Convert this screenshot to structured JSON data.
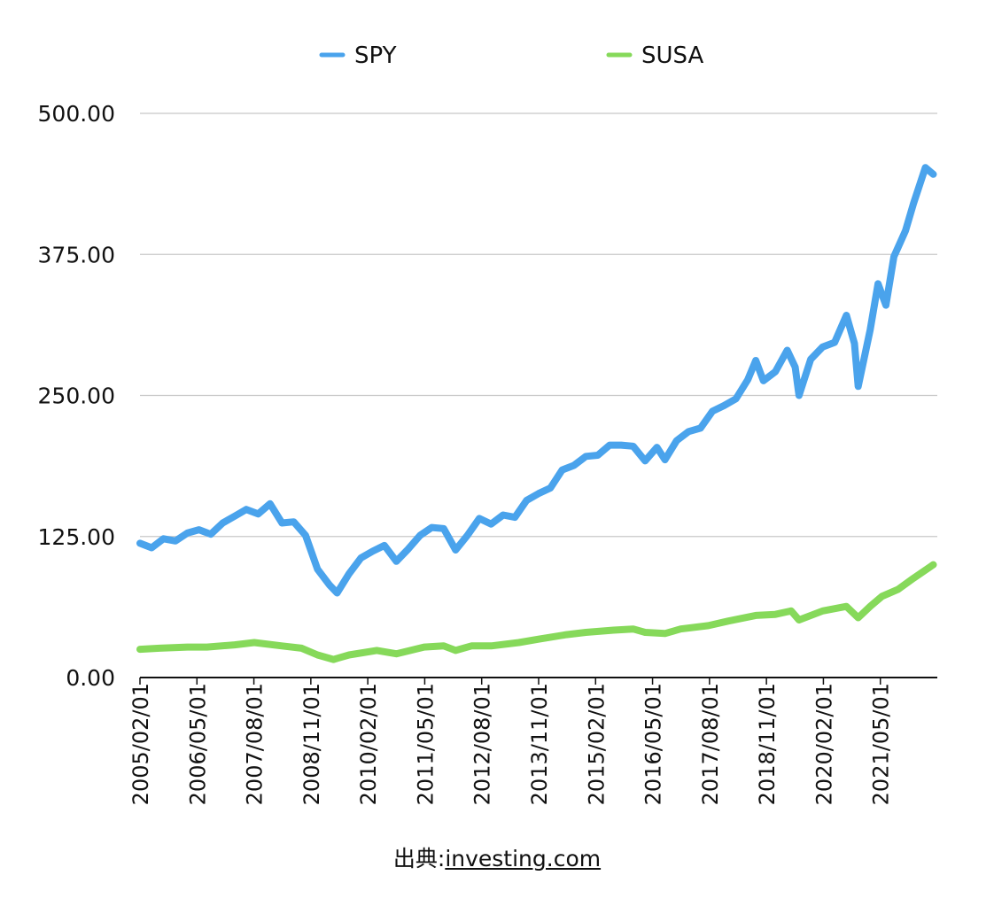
{
  "chart_data": {
    "type": "line",
    "x_tick_labels": [
      "2005/02/01",
      "2006/05/01",
      "2007/08/01",
      "2008/11/01",
      "2010/02/01",
      "2011/05/01",
      "2012/08/01",
      "2013/11/01",
      "2015/02/01",
      "2016/05/01",
      "2017/08/01",
      "2018/11/01",
      "2020/02/01",
      "2021/05/01"
    ],
    "y_tick_labels": [
      "0.00",
      "125.00",
      "250.00",
      "375.00",
      "500.00"
    ],
    "ylim": [
      0,
      500
    ],
    "xlim": [
      "2005-01-01",
      "2021-11-01"
    ],
    "grid": "horizontal",
    "legend_position": "top",
    "colors": {
      "SPY": "#4aa3ec",
      "SUSA": "#86d95a"
    },
    "series": [
      {
        "name": "SPY",
        "points": [
          [
            "2005-01-01",
            119
          ],
          [
            "2005-04-01",
            115
          ],
          [
            "2005-07-01",
            123
          ],
          [
            "2005-10-01",
            121
          ],
          [
            "2006-01-01",
            128
          ],
          [
            "2006-04-01",
            131
          ],
          [
            "2006-07-01",
            127
          ],
          [
            "2006-10-01",
            137
          ],
          [
            "2007-01-01",
            143
          ],
          [
            "2007-04-01",
            149
          ],
          [
            "2007-07-01",
            145
          ],
          [
            "2007-10-01",
            154
          ],
          [
            "2008-01-01",
            137
          ],
          [
            "2008-04-01",
            138
          ],
          [
            "2008-07-01",
            126
          ],
          [
            "2008-10-01",
            96
          ],
          [
            "2009-01-01",
            82
          ],
          [
            "2009-03-01",
            75
          ],
          [
            "2009-06-01",
            92
          ],
          [
            "2009-09-01",
            106
          ],
          [
            "2009-12-01",
            112
          ],
          [
            "2010-03-01",
            117
          ],
          [
            "2010-06-01",
            103
          ],
          [
            "2010-09-01",
            114
          ],
          [
            "2010-12-01",
            126
          ],
          [
            "2011-03-01",
            133
          ],
          [
            "2011-06-01",
            132
          ],
          [
            "2011-09-01",
            113
          ],
          [
            "2011-12-01",
            126
          ],
          [
            "2012-03-01",
            141
          ],
          [
            "2012-06-01",
            136
          ],
          [
            "2012-09-01",
            144
          ],
          [
            "2012-12-01",
            142
          ],
          [
            "2013-03-01",
            157
          ],
          [
            "2013-06-01",
            163
          ],
          [
            "2013-09-01",
            168
          ],
          [
            "2013-12-01",
            184
          ],
          [
            "2014-03-01",
            188
          ],
          [
            "2014-06-01",
            196
          ],
          [
            "2014-09-01",
            197
          ],
          [
            "2014-12-01",
            206
          ],
          [
            "2015-03-01",
            206
          ],
          [
            "2015-06-01",
            205
          ],
          [
            "2015-09-01",
            192
          ],
          [
            "2015-12-01",
            204
          ],
          [
            "2016-02-01",
            193
          ],
          [
            "2016-05-01",
            210
          ],
          [
            "2016-08-01",
            218
          ],
          [
            "2016-11-01",
            221
          ],
          [
            "2017-02-01",
            236
          ],
          [
            "2017-05-01",
            241
          ],
          [
            "2017-08-01",
            247
          ],
          [
            "2017-11-01",
            264
          ],
          [
            "2018-01-01",
            281
          ],
          [
            "2018-03-01",
            263
          ],
          [
            "2018-06-01",
            271
          ],
          [
            "2018-09-01",
            290
          ],
          [
            "2018-11-01",
            275
          ],
          [
            "2018-12-01",
            250
          ],
          [
            "2019-03-01",
            282
          ],
          [
            "2019-06-01",
            293
          ],
          [
            "2019-09-01",
            297
          ],
          [
            "2019-12-01",
            321
          ],
          [
            "2020-02-01",
            296
          ],
          [
            "2020-03-01",
            258
          ],
          [
            "2020-06-01",
            308
          ],
          [
            "2020-08-01",
            349
          ],
          [
            "2020-10-01",
            330
          ],
          [
            "2020-12-01",
            373
          ],
          [
            "2021-03-01",
            396
          ],
          [
            "2021-05-01",
            420
          ],
          [
            "2021-08-01",
            452
          ],
          [
            "2021-10-01",
            446
          ]
        ]
      },
      {
        "name": "SUSA",
        "points": [
          [
            "2005-01-01",
            25
          ],
          [
            "2005-06-01",
            26
          ],
          [
            "2006-01-01",
            27
          ],
          [
            "2006-06-01",
            27
          ],
          [
            "2007-01-01",
            29
          ],
          [
            "2007-06-01",
            31
          ],
          [
            "2008-01-01",
            28
          ],
          [
            "2008-06-01",
            26
          ],
          [
            "2008-10-01",
            20
          ],
          [
            "2009-02-01",
            16
          ],
          [
            "2009-06-01",
            20
          ],
          [
            "2010-01-01",
            24
          ],
          [
            "2010-06-01",
            21
          ],
          [
            "2011-01-01",
            27
          ],
          [
            "2011-06-01",
            28
          ],
          [
            "2011-09-01",
            24
          ],
          [
            "2012-01-01",
            28
          ],
          [
            "2012-06-01",
            28
          ],
          [
            "2013-01-01",
            31
          ],
          [
            "2013-06-01",
            34
          ],
          [
            "2014-01-01",
            38
          ],
          [
            "2014-06-01",
            40
          ],
          [
            "2015-01-01",
            42
          ],
          [
            "2015-06-01",
            43
          ],
          [
            "2015-09-01",
            40
          ],
          [
            "2016-02-01",
            39
          ],
          [
            "2016-06-01",
            43
          ],
          [
            "2017-01-01",
            46
          ],
          [
            "2017-06-01",
            50
          ],
          [
            "2018-01-01",
            55
          ],
          [
            "2018-06-01",
            56
          ],
          [
            "2018-10-01",
            59
          ],
          [
            "2018-12-01",
            51
          ],
          [
            "2019-06-01",
            59
          ],
          [
            "2019-12-01",
            63
          ],
          [
            "2020-03-01",
            53
          ],
          [
            "2020-06-01",
            63
          ],
          [
            "2020-09-01",
            72
          ],
          [
            "2021-01-01",
            78
          ],
          [
            "2021-05-01",
            88
          ],
          [
            "2021-10-01",
            100
          ]
        ]
      }
    ]
  },
  "source": {
    "prefix": "出典:",
    "link": "investing.com"
  }
}
